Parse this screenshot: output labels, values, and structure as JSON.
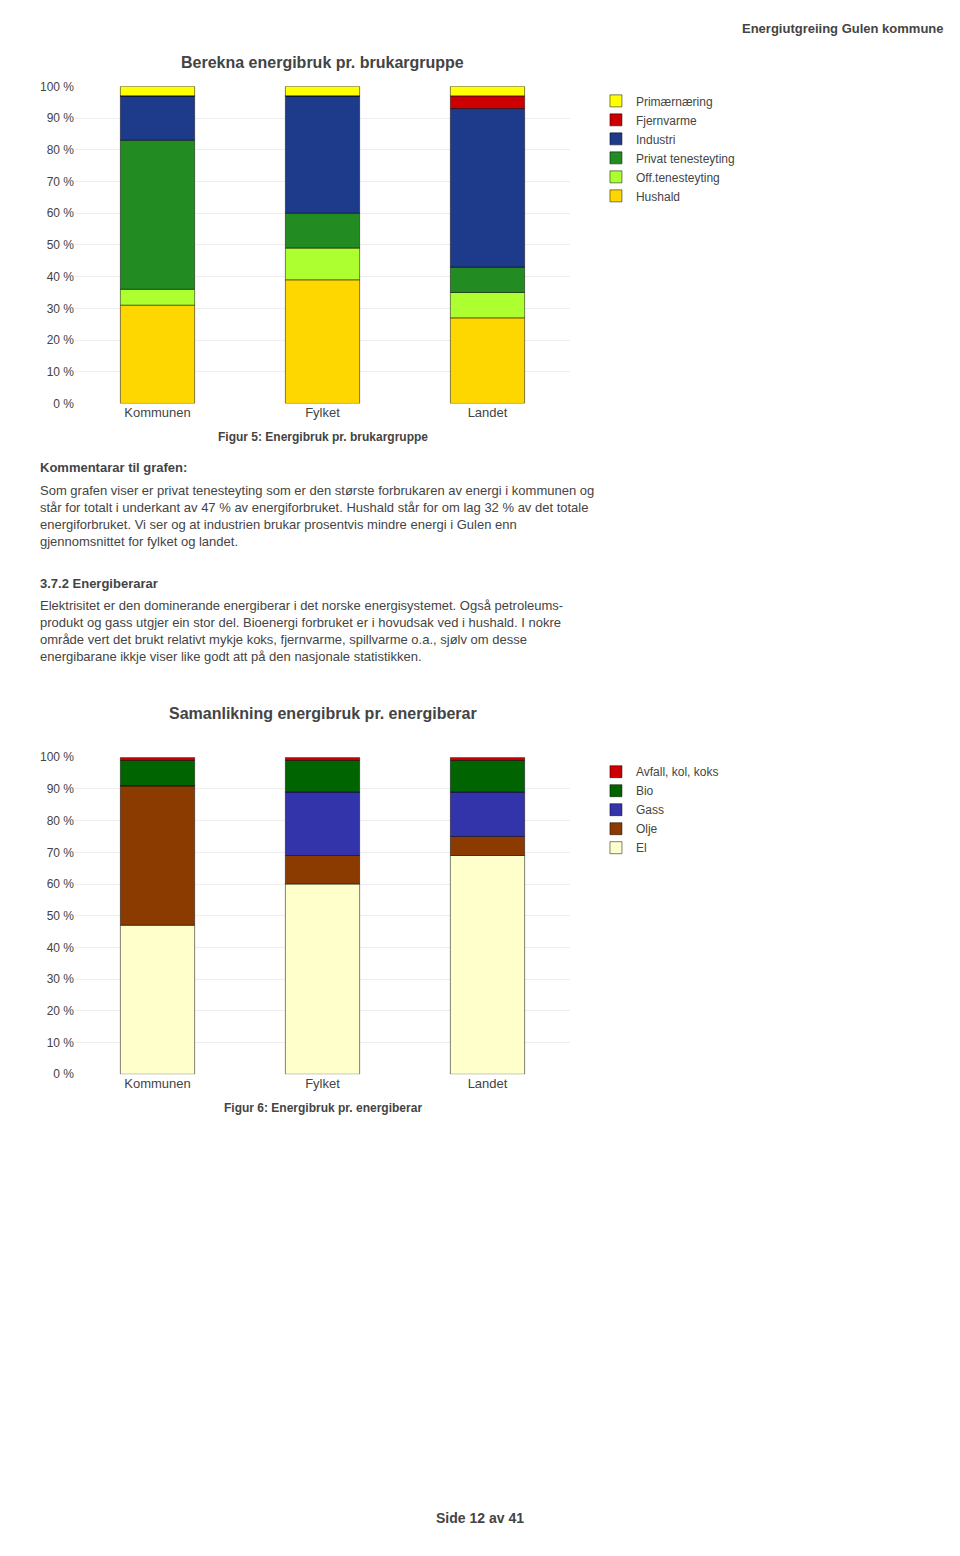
{
  "chart_data": [
    {
      "type": "bar",
      "stacked": true,
      "title": "Berekna energibruk pr. brukargruppe",
      "categories": [
        "Kommunen",
        "Fylket",
        "Landet"
      ],
      "series": [
        {
          "name": "Hushald",
          "color": "#FFD700",
          "values": [
            31,
            39,
            27
          ]
        },
        {
          "name": "Off.tenesteyting",
          "color": "#ADFF2F",
          "values": [
            5,
            10,
            8
          ]
        },
        {
          "name": "Privat tenesteyting",
          "color": "#228B22",
          "values": [
            47,
            11,
            8
          ]
        },
        {
          "name": "Industri",
          "color": "#1E3A8A",
          "values": [
            14,
            37,
            50
          ]
        },
        {
          "name": "Fjernvarme",
          "color": "#CC0000",
          "values": [
            0,
            0,
            4
          ]
        },
        {
          "name": "Primærnæring",
          "color": "#FFFF00",
          "values": [
            3,
            3,
            3
          ]
        }
      ],
      "ylim": [
        0,
        100
      ],
      "yticks": [
        {
          "value": 0,
          "label": "0 %"
        },
        {
          "value": 10,
          "label": "10 %"
        },
        {
          "value": 20,
          "label": "20 %"
        },
        {
          "value": 30,
          "label": "30 %"
        },
        {
          "value": 40,
          "label": "40 %"
        },
        {
          "value": 50,
          "label": "50 %"
        },
        {
          "value": 60,
          "label": "60 %"
        },
        {
          "value": 70,
          "label": "70 %"
        },
        {
          "value": 80,
          "label": "80 %"
        },
        {
          "value": 90,
          "label": "90 %"
        },
        {
          "value": 100,
          "label": "100 %"
        }
      ],
      "grid": true,
      "legend": "right",
      "annotations": [
        "Energiutgreiing Gulen kommune",
        "Figur 5: Energibruk pr. brukargruppe",
        "Kommentarar til grafen:",
        "Som grafen viser er privat tenesteyting som er den største forbrukaren av energi i kommunen og\nstår for totalt i underkant av 47 % av energiforbruket. Hushald står for om lag 32 % av det totale\nenergiforbruket. Vi ser og at industrien brukar prosentvis mindre energi i Gulen enn\ngjennomsnittet for fylket og landet.",
        "3.7.2 Energiberarar",
        "Elektrisitet er den dominerande energiberar i det norske energisystemet. Også petroleums-\nprodukt og gass utgjer ein stor del. Bioenergi forbruket er i hovudsak ved i hushald. I nokre\nområde vert det brukt relativt mykje koks, fjernvarme, spillvarme o.a., sjølv om desse\nenergibarane ikkje viser like godt att på den nasjonale statistikken."
      ]
    },
    {
      "type": "bar",
      "stacked": true,
      "title": "Samanlikning energibruk pr. energiberar",
      "categories": [
        "Kommunen",
        "Fylket",
        "Landet"
      ],
      "series": [
        {
          "name": "El",
          "color": "#FFFFCC",
          "values": [
            47,
            60,
            69
          ]
        },
        {
          "name": "Olje",
          "color": "#8B3A00",
          "values": [
            44,
            9,
            6
          ]
        },
        {
          "name": "Gass",
          "color": "#3333AA",
          "values": [
            0,
            20,
            14
          ]
        },
        {
          "name": "Bio",
          "color": "#006400",
          "values": [
            8,
            10,
            10
          ]
        },
        {
          "name": "Avfall, kol, koks",
          "color": "#CC0000",
          "values": [
            1,
            1,
            1
          ]
        }
      ],
      "ylim": [
        0,
        100
      ],
      "yticks": [
        {
          "value": 0,
          "label": "0 %"
        },
        {
          "value": 10,
          "label": "10 %"
        },
        {
          "value": 20,
          "label": "20 %"
        },
        {
          "value": 30,
          "label": "30 %"
        },
        {
          "value": 40,
          "label": "40 %"
        },
        {
          "value": 50,
          "label": "50 %"
        },
        {
          "value": 60,
          "label": "60 %"
        },
        {
          "value": 70,
          "label": "70 %"
        },
        {
          "value": 80,
          "label": "80 %"
        },
        {
          "value": 90,
          "label": "90 %"
        },
        {
          "value": 100,
          "label": "100 %"
        }
      ],
      "grid": true,
      "legend": "right",
      "annotations": [
        "Figur 6: Energibruk pr. energiberar",
        "Side 12 av 41"
      ]
    }
  ]
}
